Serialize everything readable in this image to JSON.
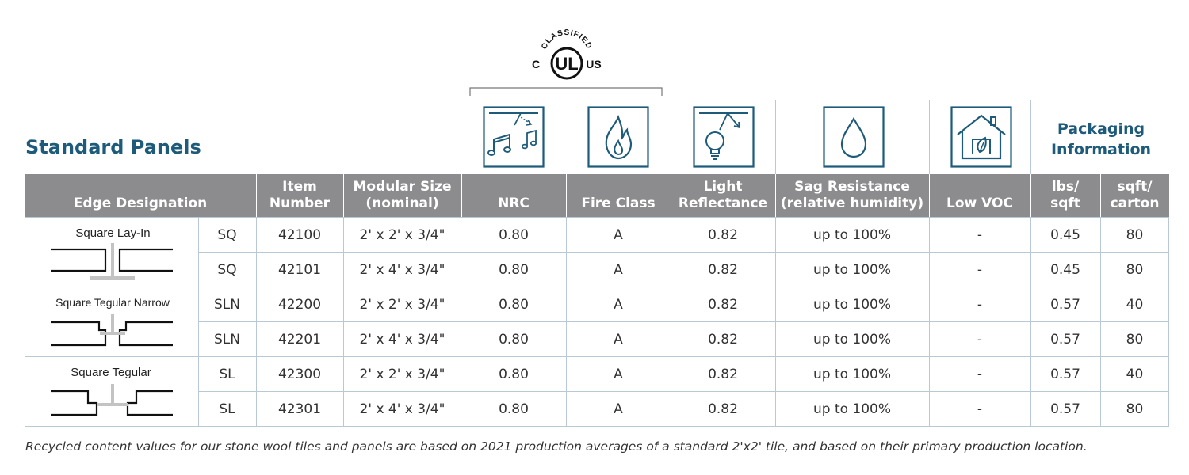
{
  "title": "Standard Panels",
  "certification": {
    "top_text": "CLASSIFIED",
    "left_text": "C",
    "center_text": "UL",
    "right_text": "US"
  },
  "packaging_header": [
    "Packaging",
    "Information"
  ],
  "columns": {
    "edge_designation": "Edge Designation",
    "item_number": [
      "Item",
      "Number"
    ],
    "modular_size": [
      "Modular Size",
      "(nominal)"
    ],
    "nrc": "NRC",
    "fire_class": "Fire Class",
    "light_reflectance": [
      "Light",
      "Reflectance"
    ],
    "sag_resistance": [
      "Sag Resistance",
      "(relative humidity)"
    ],
    "low_voc": "Low VOC",
    "lbs_sqft": [
      "lbs/",
      "sqft"
    ],
    "sqft_carton": [
      "sqft/",
      "carton"
    ]
  },
  "icons": [
    "acoustic-icon",
    "flame-icon",
    "light-reflectance-icon",
    "water-drop-icon",
    "house-leaf-icon"
  ],
  "edge_groups": [
    {
      "name": "Square Lay-In"
    },
    {
      "name": "Square Tegular Narrow"
    },
    {
      "name": "Square Tegular"
    }
  ],
  "rows": [
    {
      "code": "SQ",
      "item": "42100",
      "size": "2' x 2' x 3/4\"",
      "nrc": "0.80",
      "fire": "A",
      "lr": "0.82",
      "sag": "up to 100%",
      "voc": "-",
      "lbs": "0.45",
      "carton": "80"
    },
    {
      "code": "SQ",
      "item": "42101",
      "size": "2' x 4' x 3/4\"",
      "nrc": "0.80",
      "fire": "A",
      "lr": "0.82",
      "sag": "up to 100%",
      "voc": "-",
      "lbs": "0.45",
      "carton": "80"
    },
    {
      "code": "SLN",
      "item": "42200",
      "size": "2' x 2' x 3/4\"",
      "nrc": "0.80",
      "fire": "A",
      "lr": "0.82",
      "sag": "up to 100%",
      "voc": "-",
      "lbs": "0.57",
      "carton": "40"
    },
    {
      "code": "SLN",
      "item": "42201",
      "size": "2' x 4' x 3/4\"",
      "nrc": "0.80",
      "fire": "A",
      "lr": "0.82",
      "sag": "up to 100%",
      "voc": "-",
      "lbs": "0.57",
      "carton": "80"
    },
    {
      "code": "SL",
      "item": "42300",
      "size": "2' x 2' x 3/4\"",
      "nrc": "0.80",
      "fire": "A",
      "lr": "0.82",
      "sag": "up to 100%",
      "voc": "-",
      "lbs": "0.57",
      "carton": "40"
    },
    {
      "code": "SL",
      "item": "42301",
      "size": "2' x 4' x 3/4\"",
      "nrc": "0.80",
      "fire": "A",
      "lr": "0.82",
      "sag": "up to 100%",
      "voc": "-",
      "lbs": "0.57",
      "carton": "80"
    }
  ],
  "footnote": "Recycled content values for our stone wool tiles and panels are based on 2021 production averages of a standard 2'x2' tile, and based on their primary production location.",
  "colors": {
    "brand": "#1e5b7a",
    "header_bg": "#8c8c8e",
    "grid": "#b9c9d3"
  }
}
